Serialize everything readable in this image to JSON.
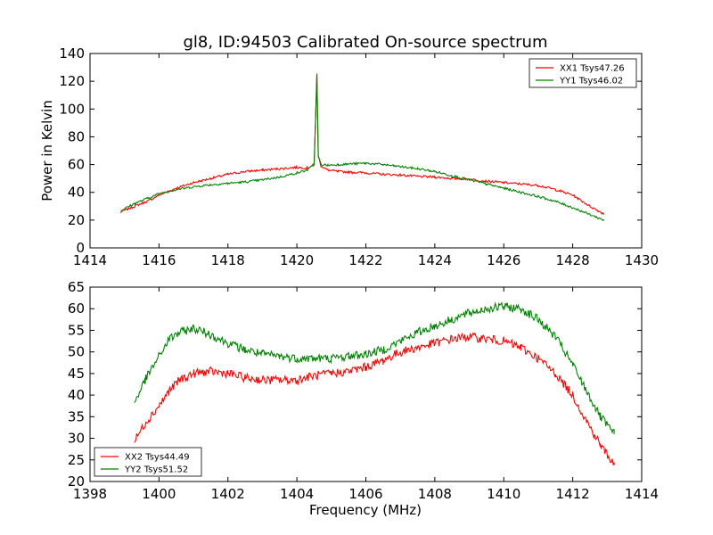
{
  "chart_data": [
    {
      "type": "line",
      "title": "gl8, ID:94503 Calibrated On-source spectrum",
      "xlabel": "",
      "ylabel": "Power in Kelvin",
      "xlim": [
        1414,
        1430
      ],
      "ylim": [
        0,
        140
      ],
      "xticks": [
        1414,
        1416,
        1418,
        1420,
        1422,
        1424,
        1426,
        1428,
        1430
      ],
      "yticks": [
        0,
        20,
        40,
        60,
        80,
        100,
        120,
        140
      ],
      "legend_position": "top-right",
      "series": [
        {
          "name": "XX1 Tsys47.26",
          "color": "#ff0000",
          "x": [
            1414.9,
            1415.3,
            1415.7,
            1416.0,
            1416.5,
            1417.0,
            1417.5,
            1418.0,
            1418.5,
            1419.0,
            1419.5,
            1420.0,
            1420.3,
            1420.5,
            1420.58,
            1420.62,
            1420.7,
            1420.9,
            1421.2,
            1421.6,
            1422.0,
            1422.5,
            1423.0,
            1423.5,
            1424.0,
            1424.5,
            1425.0,
            1425.5,
            1426.0,
            1426.5,
            1427.0,
            1427.5,
            1428.0,
            1428.5,
            1428.9
          ],
          "y": [
            26,
            30,
            34,
            38,
            43,
            47,
            50,
            53,
            55,
            56,
            57,
            58,
            57.5,
            60,
            124,
            66,
            59,
            56,
            55,
            54.5,
            54,
            53,
            52.5,
            51.5,
            51,
            50,
            49.5,
            48,
            47,
            46,
            45,
            42,
            38,
            30,
            24.5
          ]
        },
        {
          "name": "YY1 Tsys46.02",
          "color": "#008000",
          "x": [
            1414.9,
            1415.3,
            1415.7,
            1416.0,
            1416.5,
            1417.0,
            1417.5,
            1418.0,
            1418.5,
            1419.0,
            1419.5,
            1420.0,
            1420.3,
            1420.5,
            1420.58,
            1420.62,
            1420.7,
            1420.9,
            1421.2,
            1421.6,
            1422.0,
            1422.5,
            1423.0,
            1423.5,
            1424.0,
            1424.5,
            1425.0,
            1425.5,
            1426.0,
            1426.5,
            1427.0,
            1427.5,
            1428.0,
            1428.5,
            1428.9
          ],
          "y": [
            27,
            32,
            36,
            39,
            42,
            44,
            45.5,
            46.5,
            47.5,
            49,
            51,
            54,
            56,
            60,
            125,
            66,
            60,
            59.5,
            60,
            60.5,
            61,
            60,
            58.5,
            57,
            55,
            52,
            49,
            46,
            43,
            40,
            37,
            33.5,
            29,
            24,
            20
          ]
        }
      ]
    },
    {
      "type": "line",
      "title": "",
      "xlabel": "Frequency (MHz)",
      "ylabel": "",
      "xlim": [
        1398,
        1414
      ],
      "ylim": [
        20,
        65
      ],
      "xticks": [
        1398,
        1400,
        1402,
        1404,
        1406,
        1408,
        1410,
        1412,
        1414
      ],
      "yticks": [
        20,
        25,
        30,
        35,
        40,
        45,
        50,
        55,
        60,
        65
      ],
      "legend_position": "bottom-left",
      "series": [
        {
          "name": "XX2 Tsys44.49",
          "color": "#ff0000",
          "x": [
            1399.3,
            1399.6,
            1400.0,
            1400.3,
            1400.6,
            1401.0,
            1401.5,
            1402.0,
            1402.5,
            1403.0,
            1403.5,
            1404.0,
            1404.5,
            1405.0,
            1405.5,
            1406.0,
            1406.5,
            1407.0,
            1407.5,
            1408.0,
            1408.5,
            1409.0,
            1409.5,
            1410.0,
            1410.5,
            1411.0,
            1411.5,
            1412.0,
            1412.4,
            1412.8,
            1413.2
          ],
          "y": [
            29.5,
            33.5,
            37.5,
            41,
            43.5,
            45,
            45.5,
            45,
            44,
            43.5,
            43.5,
            43.5,
            44.5,
            45,
            45.5,
            46.5,
            48,
            50,
            51,
            52,
            53,
            53.5,
            53,
            52.5,
            51,
            48.5,
            45,
            40,
            34,
            28.5,
            24
          ]
        },
        {
          "name": "YY2 Tsys51.52",
          "color": "#008000",
          "x": [
            1399.3,
            1399.6,
            1400.0,
            1400.3,
            1400.6,
            1401.0,
            1401.5,
            1402.0,
            1402.5,
            1403.0,
            1403.5,
            1404.0,
            1404.5,
            1405.0,
            1405.5,
            1406.0,
            1406.5,
            1407.0,
            1407.5,
            1408.0,
            1408.5,
            1409.0,
            1409.5,
            1410.0,
            1410.5,
            1411.0,
            1411.5,
            1412.0,
            1412.4,
            1412.8,
            1413.2
          ],
          "y": [
            38.5,
            43.5,
            49,
            53,
            54.5,
            55.5,
            54,
            52,
            50.5,
            49.5,
            49,
            48.5,
            48.5,
            48.5,
            49,
            49.5,
            50.5,
            52.5,
            54.5,
            56,
            57.5,
            59,
            60,
            60.5,
            60,
            57.5,
            53.5,
            47,
            41,
            35,
            31
          ]
        }
      ]
    }
  ]
}
